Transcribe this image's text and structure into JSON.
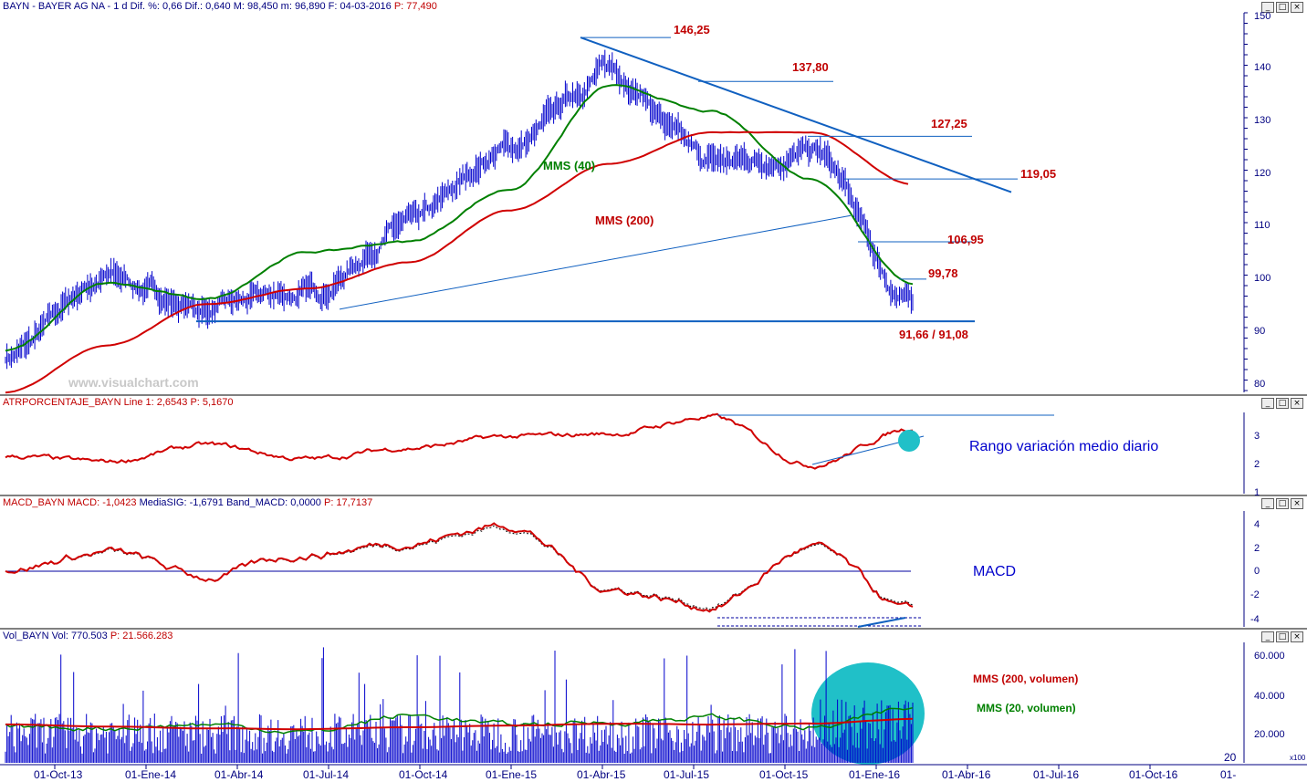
{
  "price_panel": {
    "title": "BAYN - BAYER AG  NA - 1 d Dif. %: 0,66  Dif.: 0,640  M: 98,450  m: 96,890  F: 04-03-2016",
    "title_p": "P: 77,490",
    "watermark": "www.visualchart.com",
    "mms40_label": "MMS (40)",
    "mms200_label": "MMS (200)",
    "levels": [
      "146,25",
      "137,80",
      "127,25",
      "119,05",
      "106,95",
      "99,78",
      "91,66 / 91,08"
    ],
    "y_ticks": [
      "150",
      "140",
      "130",
      "120",
      "110",
      "100",
      "90",
      "80"
    ]
  },
  "atr_panel": {
    "title": "ATRPORCENTAJE_BAYN  Line 1: 2,6543",
    "title_p": "P: 5,1670",
    "annotation": "Rango variación medio diario",
    "y_ticks": [
      "3",
      "2",
      "1"
    ]
  },
  "macd_panel": {
    "title_a": "MACD_BAYN  MACD: -1,0423",
    "title_b": "MediaSIG: -1,6791  Band_MACD: 0,0000",
    "title_p": "P: 17,7137",
    "annotation": "MACD",
    "y_ticks": [
      "4",
      "2",
      "0",
      "-2",
      "-4"
    ]
  },
  "vol_panel": {
    "title": "Vol_BAYN  Vol: 770.503",
    "title_p": "P: 21.566.283",
    "mms200_label": "MMS (200, volumen)",
    "mms20_label": "MMS (20, volumen)",
    "y_ticks": [
      "60.000",
      "40.000",
      "20.000"
    ],
    "scale_note": "x100",
    "corner": "20"
  },
  "x_axis": [
    "01-Oct-13",
    "01-Ene-14",
    "01-Abr-14",
    "01-Jul-14",
    "01-Oct-14",
    "01-Ene-15",
    "01-Abr-15",
    "01-Jul-15",
    "01-Oct-15",
    "01-Ene-16",
    "01-Abr-16",
    "01-Jul-16",
    "01-Oct-16",
    "01-"
  ],
  "colors": {
    "price": "#0000cc",
    "mms40": "#008000",
    "mms200": "#d00000",
    "trend": "#1060c0",
    "highlight": "#20c0c8",
    "label_red": "#c00000",
    "axis": "#000080"
  },
  "chart_data": [
    {
      "type": "line",
      "title": "BAYN - BAYER AG  NA - 1 d",
      "x": [
        "01-Oct-13",
        "01-Ene-14",
        "01-Abr-14",
        "01-Jul-14",
        "01-Oct-14",
        "01-Ene-15",
        "01-Abr-15",
        "01-Jul-15",
        "01-Oct-15",
        "01-Ene-16"
      ],
      "ylim": [
        78,
        151
      ],
      "series": [
        {
          "name": "BAYN",
          "values": [
            85,
            100,
            94,
            97,
            110,
            125,
            140,
            122,
            124,
            95
          ]
        },
        {
          "name": "MMS (40)",
          "values": [
            86,
            99,
            96,
            105,
            107,
            117,
            137,
            132,
            119,
            99
          ]
        },
        {
          "name": "MMS (200)",
          "values": [
            78,
            87,
            95,
            98,
            103,
            113,
            122,
            128,
            128,
            118
          ]
        }
      ],
      "levels": [
        146.25,
        137.8,
        127.25,
        119.05,
        106.95,
        99.78,
        91.66,
        91.08
      ]
    },
    {
      "type": "line",
      "title": "ATRPORCENTAJE_BAYN",
      "x": [
        "01-Oct-13",
        "01-Ene-14",
        "01-Abr-14",
        "01-Jul-14",
        "01-Oct-14",
        "01-Ene-15",
        "01-Abr-15",
        "01-Jul-15",
        "01-Oct-15",
        "01-Ene-16"
      ],
      "ylim": [
        1,
        3.8
      ],
      "series": [
        {
          "name": "Line 1",
          "values": [
            2.3,
            2.1,
            2.7,
            2.2,
            2.6,
            3.0,
            3.1,
            3.7,
            2.0,
            3.3
          ]
        }
      ]
    },
    {
      "type": "line",
      "title": "MACD_BAYN",
      "x": [
        "01-Oct-13",
        "01-Ene-14",
        "01-Abr-14",
        "01-Jul-14",
        "01-Oct-14",
        "01-Ene-15",
        "01-Abr-15",
        "01-Jul-15",
        "01-Oct-15",
        "01-Ene-16"
      ],
      "ylim": [
        -5,
        5
      ],
      "series": [
        {
          "name": "MACD",
          "values": [
            0.2,
            1.6,
            -0.5,
            1.5,
            2.5,
            4.0,
            -1.5,
            -3.0,
            2.0,
            -3.5
          ]
        },
        {
          "name": "MediaSIG",
          "values": [
            0.1,
            1.5,
            -0.3,
            1.3,
            2.3,
            3.6,
            -1.2,
            -2.7,
            1.8,
            -3.2
          ]
        }
      ]
    },
    {
      "type": "bar",
      "title": "Vol_BAYN",
      "x": [
        "01-Oct-13",
        "01-Ene-14",
        "01-Abr-14",
        "01-Jul-14",
        "01-Oct-14",
        "01-Ene-15",
        "01-Abr-15",
        "01-Jul-15",
        "01-Oct-15",
        "01-Ene-16"
      ],
      "ylim": [
        0,
        66000
      ],
      "series": [
        {
          "name": "MMS (200, volumen)",
          "values": [
            21000,
            20000,
            19000,
            18500,
            19500,
            20500,
            21500,
            21000,
            21500,
            24000
          ]
        },
        {
          "name": "MMS (20, volumen)",
          "values": [
            20000,
            19000,
            21000,
            17000,
            26000,
            21000,
            22000,
            25000,
            19000,
            30000
          ]
        }
      ]
    }
  ]
}
